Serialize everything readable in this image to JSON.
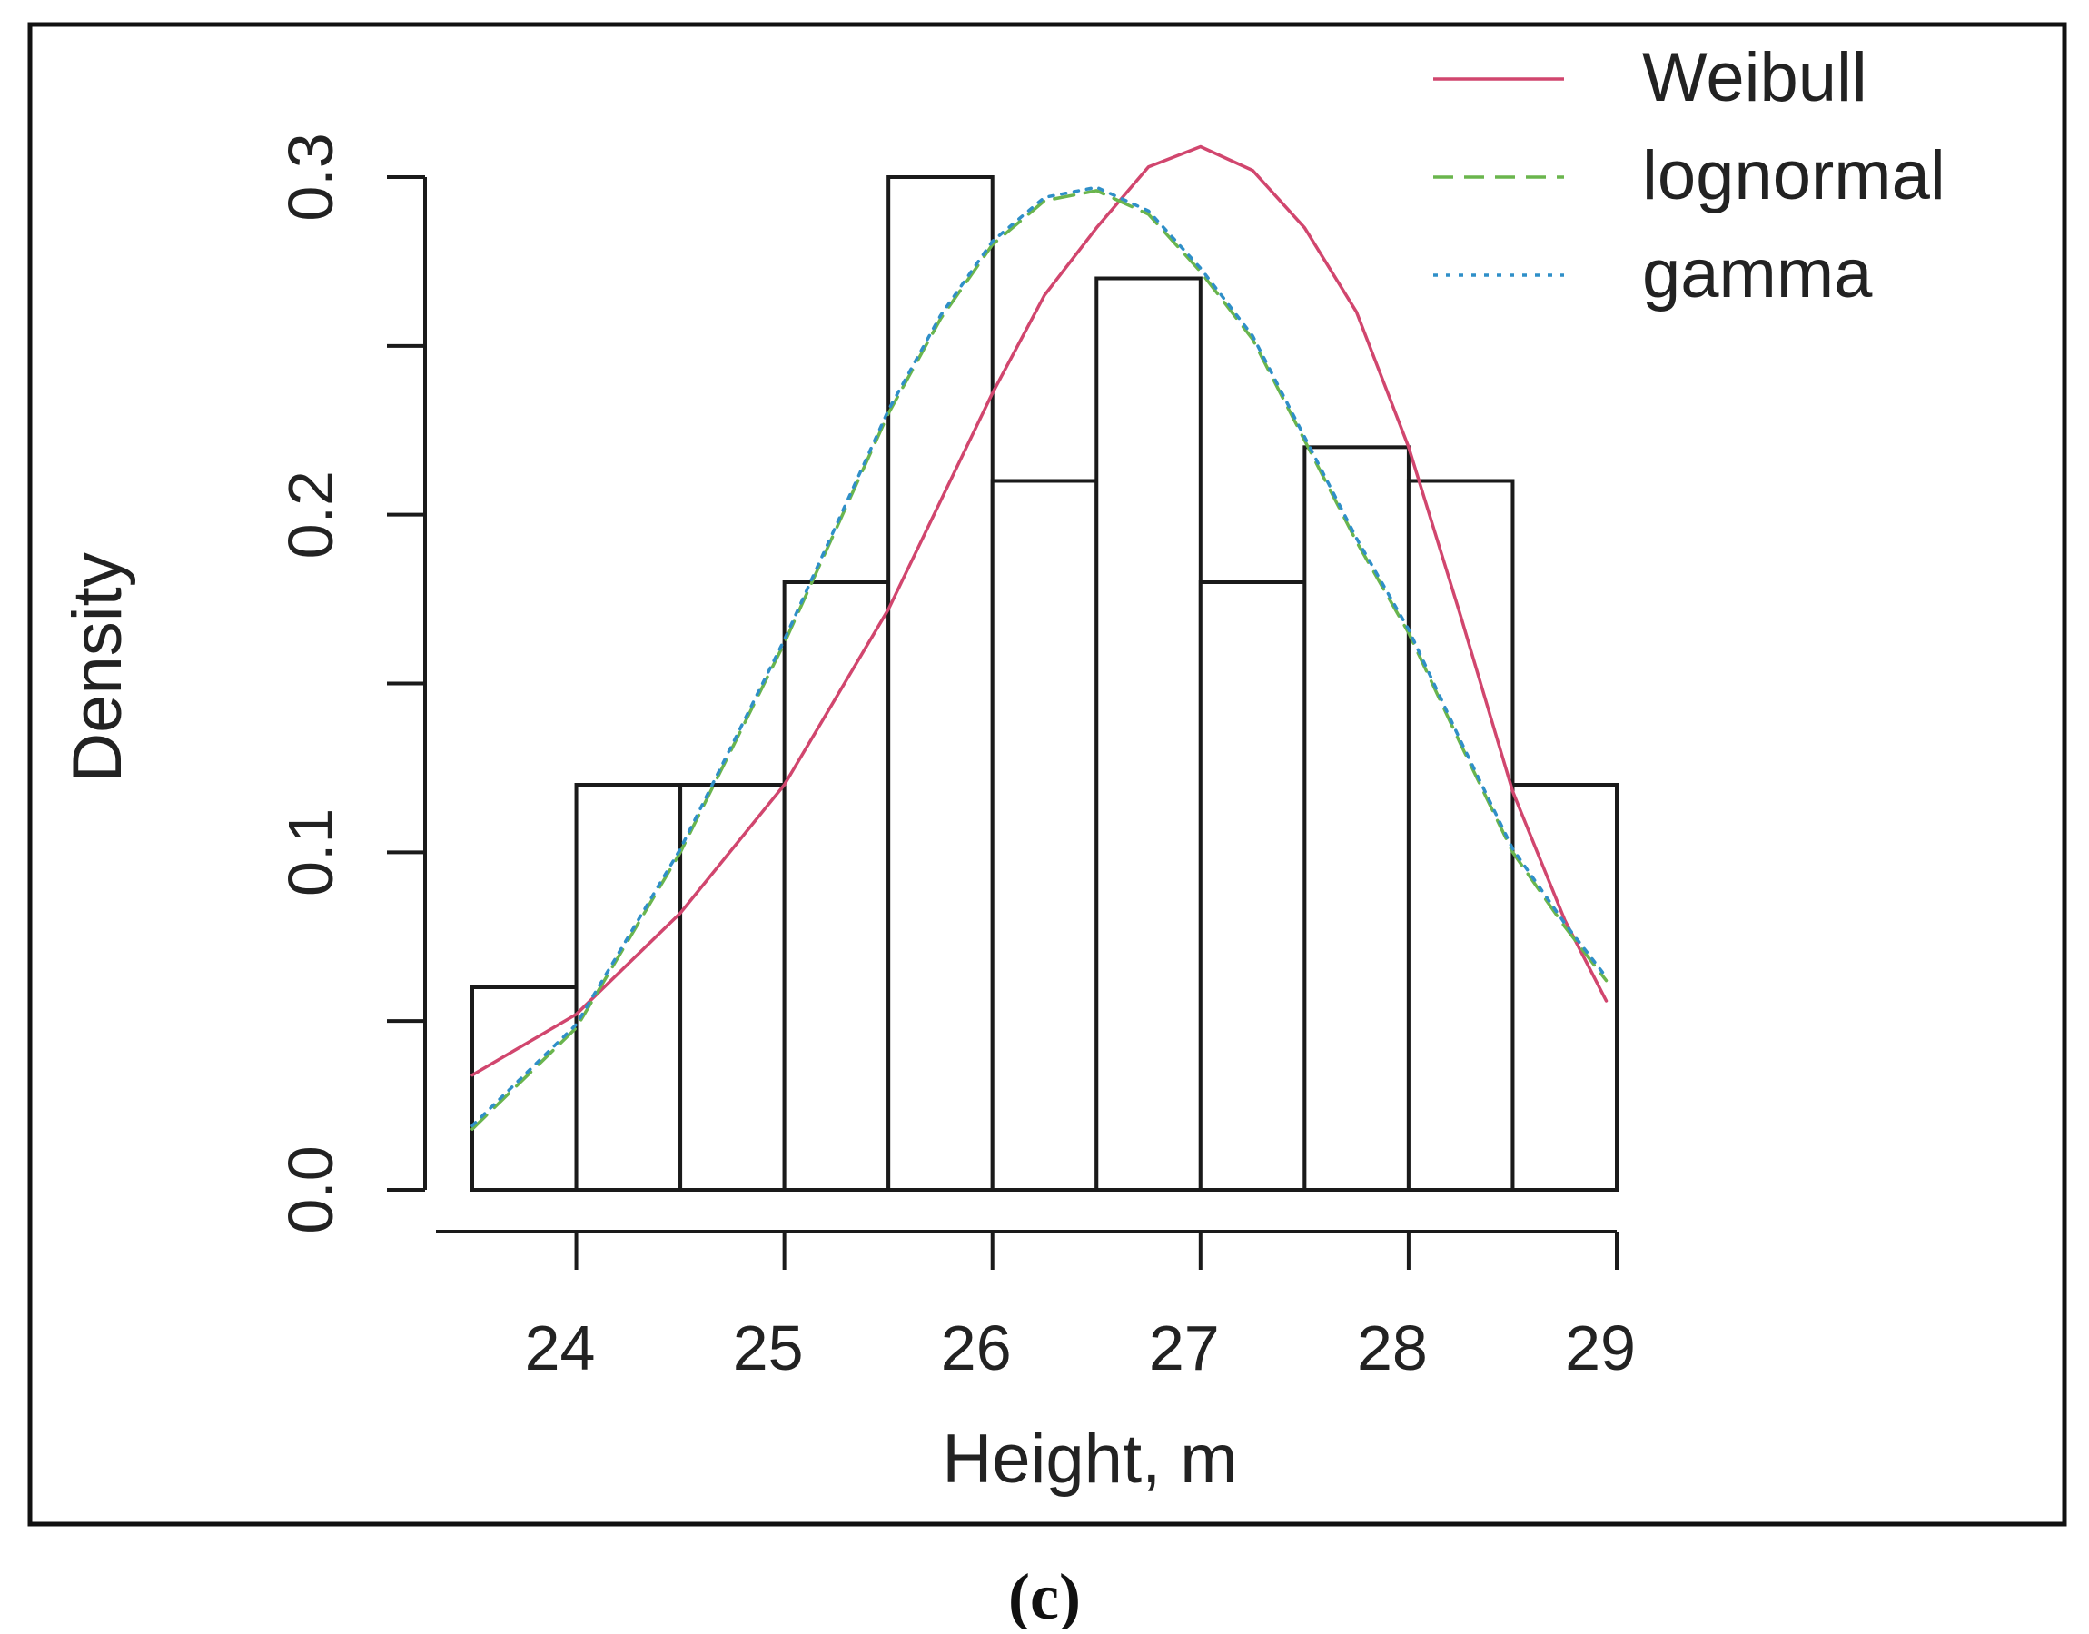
{
  "panel_label": "(c)",
  "chart_data": {
    "type": "bar",
    "subtype": "histogram_with_density_curves",
    "title": "",
    "xlabel": "Height, m",
    "ylabel": "Density",
    "xlim": [
      23.5,
      29
    ],
    "ylim": [
      0,
      0.3
    ],
    "x_ticks": [
      24,
      25,
      26,
      27,
      28,
      29
    ],
    "y_ticks": [
      0.0,
      0.1,
      0.2,
      0.3
    ],
    "y_tick_labels": [
      "0.0",
      "0.1",
      "0.2",
      "0.3"
    ],
    "grid": false,
    "legend_position": "top-right",
    "bins": [
      {
        "x0": 23.5,
        "x1": 24.0,
        "density": 0.06
      },
      {
        "x0": 24.0,
        "x1": 24.5,
        "density": 0.12
      },
      {
        "x0": 24.5,
        "x1": 25.0,
        "density": 0.12
      },
      {
        "x0": 25.0,
        "x1": 25.5,
        "density": 0.18
      },
      {
        "x0": 25.5,
        "x1": 26.0,
        "density": 0.3
      },
      {
        "x0": 26.0,
        "x1": 26.5,
        "density": 0.21
      },
      {
        "x0": 26.5,
        "x1": 27.0,
        "density": 0.27
      },
      {
        "x0": 27.0,
        "x1": 27.5,
        "density": 0.18
      },
      {
        "x0": 27.5,
        "x1": 28.0,
        "density": 0.22
      },
      {
        "x0": 28.0,
        "x1": 28.5,
        "density": 0.21
      },
      {
        "x0": 28.5,
        "x1": 29.0,
        "density": 0.12
      }
    ],
    "series": [
      {
        "name": "Weibull",
        "color": "#d1466e",
        "line_style": "solid",
        "x": [
          23.5,
          24.0,
          24.5,
          25.0,
          25.5,
          26.0,
          26.25,
          26.5,
          26.75,
          27.0,
          27.25,
          27.5,
          27.75,
          28.0,
          28.25,
          28.5,
          28.75,
          28.95
        ],
        "y": [
          0.034,
          0.052,
          0.082,
          0.12,
          0.172,
          0.236,
          0.265,
          0.285,
          0.303,
          0.309,
          0.302,
          0.285,
          0.26,
          0.22,
          0.17,
          0.118,
          0.08,
          0.056
        ]
      },
      {
        "name": "lognormal",
        "color": "#6ab54d",
        "line_style": "dashed",
        "x": [
          23.5,
          24.0,
          24.5,
          25.0,
          25.5,
          25.75,
          26.0,
          26.25,
          26.5,
          26.75,
          27.0,
          27.25,
          27.5,
          27.75,
          28.0,
          28.25,
          28.5,
          28.75,
          28.95
        ],
        "y": [
          0.018,
          0.048,
          0.1,
          0.162,
          0.23,
          0.258,
          0.28,
          0.293,
          0.296,
          0.289,
          0.272,
          0.252,
          0.222,
          0.192,
          0.165,
          0.132,
          0.1,
          0.078,
          0.062
        ]
      },
      {
        "name": "gamma",
        "color": "#2f8fc8",
        "line_style": "dotted",
        "x": [
          23.5,
          24.0,
          24.5,
          25.0,
          25.5,
          25.75,
          26.0,
          26.25,
          26.5,
          26.75,
          27.0,
          27.25,
          27.5,
          27.75,
          28.0,
          28.25,
          28.5,
          28.75,
          28.95
        ],
        "y": [
          0.019,
          0.049,
          0.101,
          0.163,
          0.231,
          0.259,
          0.281,
          0.294,
          0.297,
          0.29,
          0.273,
          0.253,
          0.223,
          0.193,
          0.166,
          0.133,
          0.101,
          0.079,
          0.063
        ]
      }
    ]
  }
}
